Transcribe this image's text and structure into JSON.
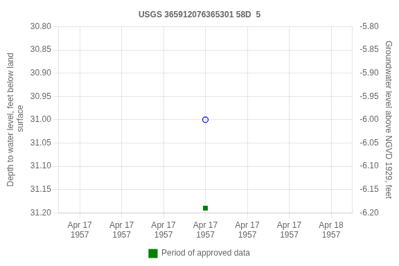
{
  "chart_data": {
    "type": "scatter",
    "title": "USGS 365912076365301 58D  5",
    "categories": [
      "Apr 17\n1957",
      "Apr 17\n1957",
      "Apr 17\n1957",
      "Apr 17\n1957",
      "Apr 17\n1957",
      "Apr 17\n1957",
      "Apr 18\n1957"
    ],
    "series": [
      {
        "color": "blue",
        "marker": "circle_open",
        "values": [
          null,
          null,
          null,
          31.0,
          null,
          null,
          null
        ]
      },
      {
        "name": "Period of approved data",
        "color": "green",
        "marker": "square",
        "values": [
          null,
          null,
          null,
          31.19,
          null,
          null,
          null
        ]
      }
    ],
    "ylabel": "Depth to water level, feet below land\n surface",
    "y2label": "Groundwater level above NGVD 1929, feet",
    "ylim": [
      31.2,
      30.8
    ],
    "yticks": [
      {
        "value": 30.8,
        "label": "30.80"
      },
      {
        "value": 30.85,
        "label": "30.85"
      },
      {
        "value": 30.9,
        "label": "30.90"
      },
      {
        "value": 30.95,
        "label": "30.95"
      },
      {
        "value": 31.0,
        "label": "31.00"
      },
      {
        "value": 31.05,
        "label": "31.05"
      },
      {
        "value": 31.1,
        "label": "31.10"
      },
      {
        "value": 31.15,
        "label": "31.15"
      },
      {
        "value": 31.2,
        "label": "31.20"
      }
    ],
    "y2lim": [
      -6.2,
      -5.8
    ],
    "y2ticks": [
      {
        "value": -5.8,
        "label": "-5.80"
      },
      {
        "value": -5.85,
        "label": "-5.85"
      },
      {
        "value": -5.9,
        "label": "-5.90"
      },
      {
        "value": -5.95,
        "label": "-5.95"
      },
      {
        "value": -6.0,
        "label": "-6.00"
      },
      {
        "value": -6.05,
        "label": "-6.05"
      },
      {
        "value": -6.1,
        "label": "-6.10"
      },
      {
        "value": -6.15,
        "label": "-6.15"
      },
      {
        "value": -6.2,
        "label": "-6.20"
      }
    ],
    "grid": true,
    "legend": "bottom"
  }
}
